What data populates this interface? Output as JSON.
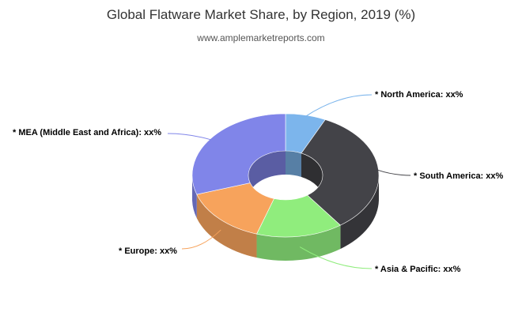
{
  "chart_data": {
    "type": "pie",
    "variant": "3d-donut",
    "title": "Global Flatware Market Share, by Region, 2019 (%)",
    "subtitle": "www.amplemarketreports.com",
    "legend": "none",
    "slices": [
      {
        "label": "* North America: xx%",
        "value": 7,
        "color": "#7cb5ec"
      },
      {
        "label": "* South America: xx%",
        "value": 33,
        "color": "#434348"
      },
      {
        "label": "* Asia & Pacific: xx%",
        "value": 15,
        "color": "#90ed7d"
      },
      {
        "label": "* Europe: xx%",
        "value": 15,
        "color": "#f7a35c"
      },
      {
        "label": "* MEA (Middle East and Africa): xx%",
        "value": 30,
        "color": "#8085e9"
      }
    ]
  }
}
